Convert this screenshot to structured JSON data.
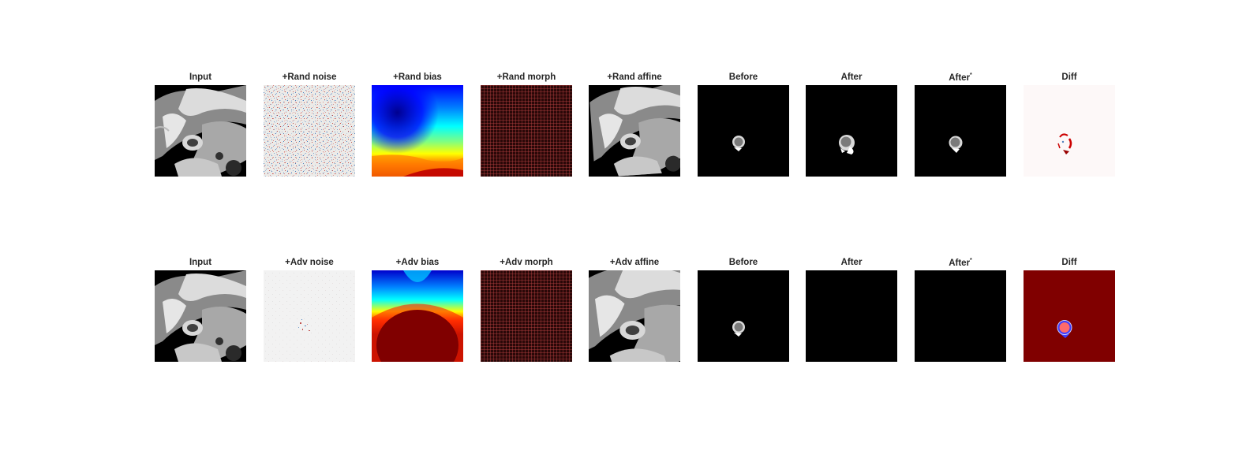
{
  "rows": [
    {
      "titles": [
        "Input",
        "+Rand noise",
        "+Rand bias",
        "+Rand morph",
        "+Rand affine",
        "Before",
        "After",
        "After",
        "Diff"
      ],
      "after_star_superscript": "*"
    },
    {
      "titles": [
        "Input",
        "+Adv noise",
        "+Adv bias",
        "+Adv morph",
        "+Adv affine",
        "Before",
        "After",
        "After",
        "Diff"
      ],
      "after_star_superscript": "*"
    }
  ],
  "colors": {
    "background": "#ffffff",
    "title_text": "#262626",
    "jet_dark_blue": "#00008f",
    "jet_dark_red": "#800000",
    "grid_red": "#d04040",
    "noise_red": "#c0504d",
    "noise_blue": "#4f81bd"
  }
}
